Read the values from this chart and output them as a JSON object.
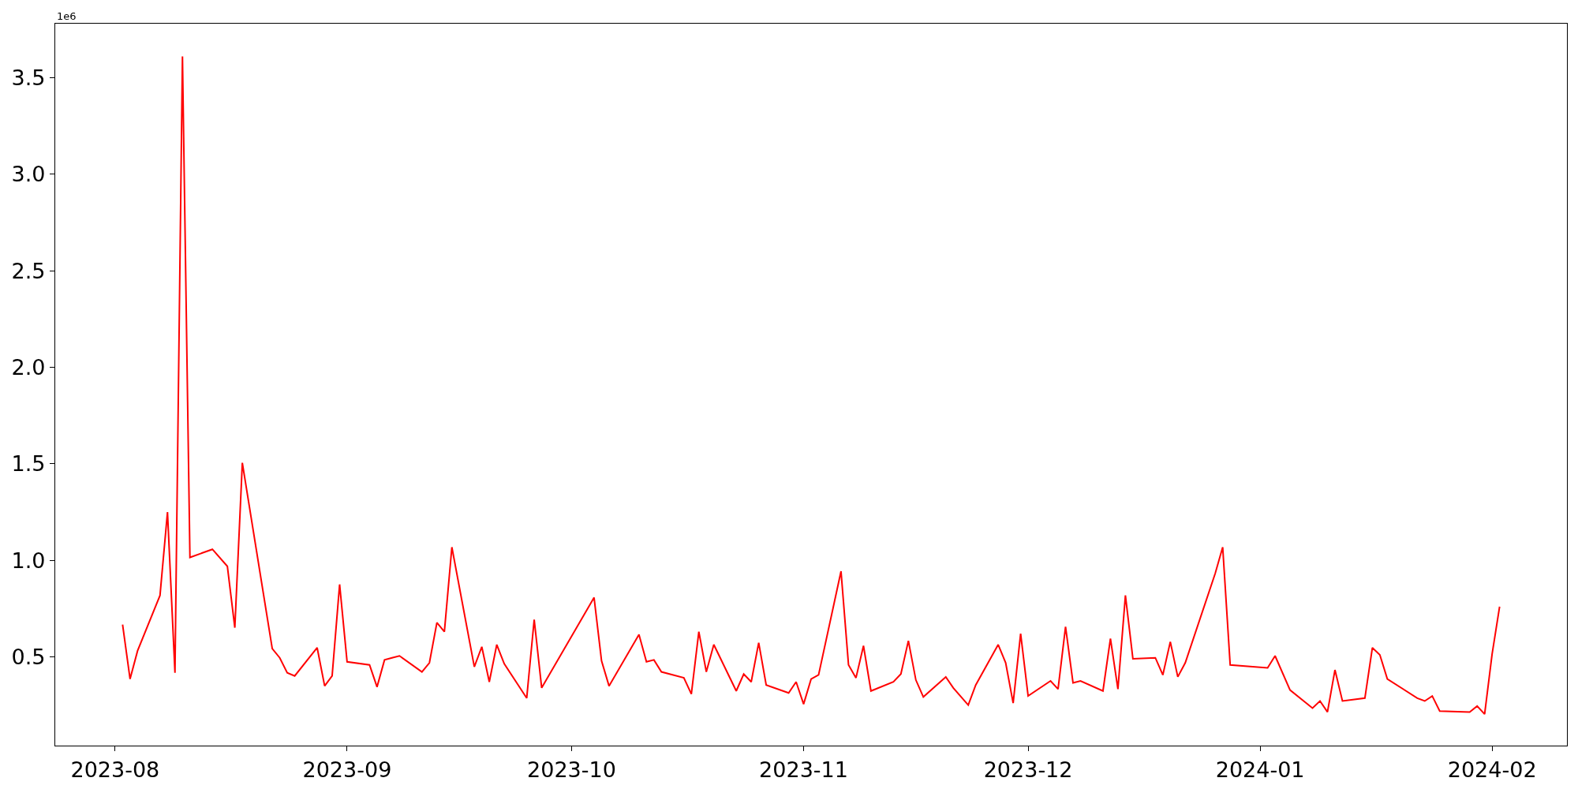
{
  "chart_data": {
    "type": "line",
    "annotations": [
      "1e6"
    ],
    "grid": false,
    "marker": "none",
    "line_style": "solid",
    "xlim": [
      "2023-07-24",
      "2024-02-11"
    ],
    "xticks": [
      {
        "value": "2023-08-01",
        "label": "2023-08"
      },
      {
        "value": "2023-09-01",
        "label": "2023-09"
      },
      {
        "value": "2023-10-01",
        "label": "2023-10"
      },
      {
        "value": "2023-11-01",
        "label": "2023-11"
      },
      {
        "value": "2023-12-01",
        "label": "2023-12"
      },
      {
        "value": "2024-01-01",
        "label": "2024-01"
      },
      {
        "value": "2024-02-01",
        "label": "2024-02"
      }
    ],
    "ylim": [
      0.04,
      3.78
    ],
    "yticks": [
      0.5,
      {
        "value": 1,
        "label": "1.0"
      },
      1.5,
      {
        "value": 2,
        "label": "2.0"
      },
      2.5,
      {
        "value": 3,
        "label": "3.0"
      },
      3.5
    ],
    "x": [
      "2023-08-02",
      "2023-08-03",
      "2023-08-04",
      "2023-08-07",
      "2023-08-08",
      "2023-08-09",
      "2023-08-10",
      "2023-08-11",
      "2023-08-14",
      "2023-08-16",
      "2023-08-17",
      "2023-08-18",
      "2023-08-22",
      "2023-08-23",
      "2023-08-24",
      "2023-08-25",
      "2023-08-28",
      "2023-08-29",
      "2023-08-30",
      "2023-08-31",
      "2023-09-01",
      "2023-09-04",
      "2023-09-05",
      "2023-09-06",
      "2023-09-07",
      "2023-09-08",
      "2023-09-11",
      "2023-09-12",
      "2023-09-13",
      "2023-09-14",
      "2023-09-15",
      "2023-09-18",
      "2023-09-19",
      "2023-09-20",
      "2023-09-21",
      "2023-09-22",
      "2023-09-25",
      "2023-09-26",
      "2023-09-27",
      "2023-10-04",
      "2023-10-05",
      "2023-10-06",
      "2023-10-10",
      "2023-10-11",
      "2023-10-12",
      "2023-10-13",
      "2023-10-16",
      "2023-10-17",
      "2023-10-18",
      "2023-10-19",
      "2023-10-20",
      "2023-10-23",
      "2023-10-24",
      "2023-10-25",
      "2023-10-26",
      "2023-10-27",
      "2023-10-30",
      "2023-10-31",
      "2023-11-01",
      "2023-11-02",
      "2023-11-03",
      "2023-11-06",
      "2023-11-07",
      "2023-11-08",
      "2023-11-09",
      "2023-11-10",
      "2023-11-13",
      "2023-11-14",
      "2023-11-15",
      "2023-11-16",
      "2023-11-17",
      "2023-11-20",
      "2023-11-21",
      "2023-11-23",
      "2023-11-24",
      "2023-11-27",
      "2023-11-28",
      "2023-11-29",
      "2023-11-30",
      "2023-12-01",
      "2023-12-04",
      "2023-12-05",
      "2023-12-06",
      "2023-12-07",
      "2023-12-08",
      "2023-12-11",
      "2023-12-12",
      "2023-12-13",
      "2023-12-14",
      "2023-12-15",
      "2023-12-18",
      "2023-12-19",
      "2023-12-20",
      "2023-12-21",
      "2023-12-22",
      "2023-12-26",
      "2023-12-27",
      "2023-12-28",
      "2024-01-02",
      "2024-01-03",
      "2024-01-05",
      "2024-01-08",
      "2024-01-09",
      "2024-01-10",
      "2024-01-11",
      "2024-01-12",
      "2024-01-15",
      "2024-01-16",
      "2024-01-17",
      "2024-01-18",
      "2024-01-22",
      "2024-01-23",
      "2024-01-24",
      "2024-01-25",
      "2024-01-29",
      "2024-01-30",
      "2024-01-31",
      "2024-02-01",
      "2024-02-02"
    ],
    "series": [
      {
        "color": "#ff0000",
        "values": [
          0.667,
          0.385,
          0.531,
          0.818,
          1.25,
          0.417,
          3.61,
          1.015,
          1.057,
          0.969,
          0.651,
          1.505,
          0.542,
          0.495,
          0.417,
          0.401,
          0.547,
          0.349,
          0.401,
          0.875,
          0.474,
          0.458,
          0.344,
          0.484,
          0.495,
          0.505,
          0.422,
          0.469,
          0.677,
          0.63,
          1.068,
          0.448,
          0.552,
          0.37,
          0.563,
          0.464,
          0.286,
          0.693,
          0.339,
          0.807,
          0.479,
          0.349,
          0.615,
          0.474,
          0.484,
          0.422,
          0.391,
          0.307,
          0.63,
          0.422,
          0.563,
          0.323,
          0.411,
          0.37,
          0.573,
          0.354,
          0.313,
          0.37,
          0.255,
          0.385,
          0.406,
          0.943,
          0.458,
          0.391,
          0.557,
          0.323,
          0.37,
          0.411,
          0.583,
          0.38,
          0.292,
          0.396,
          0.339,
          0.25,
          0.354,
          0.563,
          0.469,
          0.26,
          0.62,
          0.297,
          0.375,
          0.333,
          0.656,
          0.365,
          0.375,
          0.323,
          0.594,
          0.333,
          0.818,
          0.49,
          0.495,
          0.406,
          0.578,
          0.396,
          0.469,
          0.932,
          1.068,
          0.458,
          0.443,
          0.505,
          0.328,
          0.234,
          0.271,
          0.214,
          0.432,
          0.271,
          0.286,
          0.547,
          0.51,
          0.385,
          0.286,
          0.271,
          0.297,
          0.219,
          0.214,
          0.245,
          0.203,
          0.515,
          0.76
        ]
      }
    ]
  }
}
